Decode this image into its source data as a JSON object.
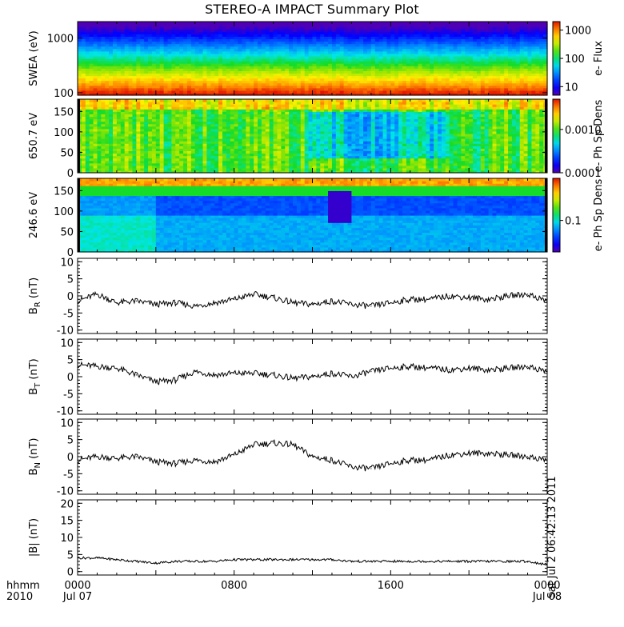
{
  "chart_data": {
    "title": "STEREO-A IMPACT Summary Plot",
    "x": {
      "label_line1": "hhmm",
      "label_line2": "2010",
      "ticks": [
        {
          "time": "0000",
          "date": "Jul 07"
        },
        {
          "time": "0800",
          "date": ""
        },
        {
          "time": "1600",
          "date": ""
        },
        {
          "time": "0000",
          "date": "Jul 08"
        }
      ],
      "range_hours": [
        0,
        24
      ]
    },
    "stamp": "Sat Jul  2 06:42:13 2011",
    "panels": [
      {
        "id": "swea",
        "type": "heatmap",
        "ylabel": "SWEA (eV)",
        "yscale": "log",
        "yrange": [
          90,
          2000
        ],
        "yticks": [
          "1000",
          "100"
        ],
        "colorbar": {
          "label": "e- Flux",
          "scale": "log",
          "range": [
            5,
            2000
          ],
          "ticks": [
            "1000",
            "100",
            "10"
          ]
        }
      },
      {
        "id": "pad650",
        "type": "heatmap",
        "ylabel": "650.7 eV",
        "yrange": [
          0,
          180
        ],
        "yticks": [
          "150",
          "100",
          "50",
          "0"
        ],
        "colorbar": {
          "label": "e- Ph Sp Dens",
          "scale": "log",
          "range": [
            0.0001,
            0.005
          ],
          "ticks": [
            "0.0010",
            "0.0001"
          ]
        }
      },
      {
        "id": "pad246",
        "type": "heatmap",
        "ylabel": "246.6 eV",
        "yrange": [
          0,
          180
        ],
        "yticks": [
          "150",
          "100",
          "50",
          "0"
        ],
        "colorbar": {
          "label": "e- Ph Sp Dens",
          "scale": "log",
          "range": [
            0.03,
            0.5
          ],
          "ticks": [
            "0.1"
          ]
        }
      },
      {
        "id": "br",
        "type": "line",
        "ylabel_main": "B",
        "ylabel_sub": "R",
        "ylabel_unit": "(nT)",
        "yrange": [
          -11,
          11
        ],
        "yticks": [
          "10",
          "5",
          "0",
          "-5",
          "-10"
        ],
        "series": {
          "x_hours": [
            0,
            1,
            2,
            3,
            4,
            5,
            6,
            7,
            8,
            9,
            10,
            11,
            12,
            13,
            14,
            15,
            16,
            17,
            18,
            19,
            20,
            21,
            22,
            23,
            24
          ],
          "values": [
            -1.5,
            0.5,
            -2.0,
            -1.5,
            -2.5,
            -2.0,
            -3.0,
            -2.0,
            -1.0,
            0.5,
            -0.5,
            -2.0,
            -2.5,
            -1.5,
            -2.5,
            -3.0,
            -2.0,
            -1.0,
            -1.0,
            0.0,
            -0.5,
            -1.0,
            0.0,
            0.5,
            -1.5
          ]
        }
      },
      {
        "id": "bt",
        "type": "line",
        "ylabel_main": "B",
        "ylabel_sub": "T",
        "ylabel_unit": "(nT)",
        "yrange": [
          -11,
          11
        ],
        "yticks": [
          "10",
          "5",
          "0",
          "-5",
          "-10"
        ],
        "series": {
          "x_hours": [
            0,
            1,
            2,
            3,
            4,
            5,
            6,
            7,
            8,
            9,
            10,
            11,
            12,
            13,
            14,
            15,
            16,
            17,
            18,
            19,
            20,
            21,
            22,
            23,
            24
          ],
          "values": [
            3.5,
            3.0,
            2.5,
            0.5,
            -1.5,
            -1.0,
            1.5,
            0.5,
            1.0,
            1.0,
            0.5,
            -0.5,
            0.0,
            1.0,
            0.0,
            1.5,
            2.5,
            3.0,
            2.5,
            2.0,
            2.5,
            2.0,
            2.5,
            3.0,
            1.5
          ]
        }
      },
      {
        "id": "bn",
        "type": "line",
        "ylabel_main": "B",
        "ylabel_sub": "N",
        "ylabel_unit": "(nT)",
        "yrange": [
          -11,
          11
        ],
        "yticks": [
          "10",
          "5",
          "0",
          "-5",
          "-10"
        ],
        "series": {
          "x_hours": [
            0,
            1,
            2,
            3,
            4,
            5,
            6,
            7,
            8,
            9,
            10,
            11,
            12,
            13,
            14,
            15,
            16,
            17,
            18,
            19,
            20,
            21,
            22,
            23,
            24
          ],
          "values": [
            -1.0,
            0.0,
            -0.5,
            0.0,
            -1.5,
            -2.0,
            -1.0,
            -1.5,
            0.5,
            3.5,
            4.0,
            3.5,
            0.0,
            -1.0,
            -3.0,
            -3.5,
            -2.0,
            -1.0,
            -1.0,
            0.5,
            1.0,
            1.0,
            0.5,
            0.0,
            -1.0
          ]
        }
      },
      {
        "id": "bmag",
        "type": "line",
        "ylabel_main": "|B|",
        "ylabel_sub": "",
        "ylabel_unit": "(nT)",
        "yrange": [
          -1,
          21
        ],
        "yticks": [
          "20",
          "15",
          "10",
          "5",
          "0"
        ],
        "series": {
          "x_hours": [
            0,
            1,
            2,
            3,
            4,
            5,
            6,
            7,
            8,
            9,
            10,
            11,
            12,
            13,
            14,
            15,
            16,
            17,
            18,
            19,
            20,
            21,
            22,
            23,
            24
          ],
          "values": [
            4.0,
            4.0,
            3.5,
            3.0,
            2.5,
            3.0,
            3.0,
            3.0,
            3.5,
            3.5,
            3.5,
            3.5,
            3.5,
            3.5,
            3.0,
            3.0,
            3.0,
            3.0,
            3.0,
            3.0,
            3.0,
            3.0,
            3.0,
            3.0,
            2.0
          ]
        }
      }
    ]
  }
}
